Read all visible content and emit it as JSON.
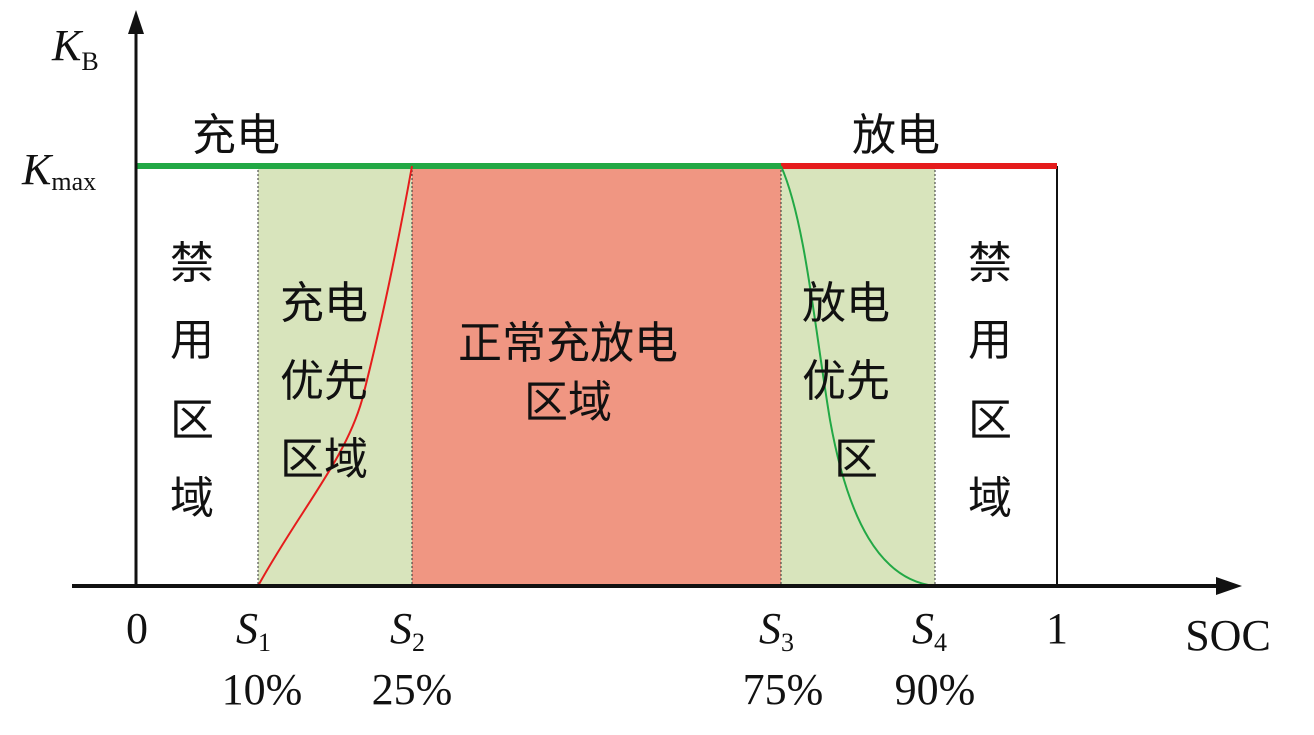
{
  "axes": {
    "y_label_main": "K",
    "y_label_sub": "B",
    "kmax_main": "K",
    "kmax_sub": "max",
    "x_label": "SOC",
    "origin": "0",
    "one": "1"
  },
  "top_labels": {
    "charge": "充电",
    "discharge": "放电"
  },
  "regions": {
    "forbidden_left": [
      "禁",
      "用",
      "区",
      "域"
    ],
    "charge_priority": [
      "充电",
      "优先",
      "区域"
    ],
    "normal": [
      "正常充放电",
      "区域"
    ],
    "discharge_priority": [
      "放电",
      "优先",
      "区"
    ],
    "forbidden_right": [
      "禁",
      "用",
      "区",
      "域"
    ]
  },
  "thresholds": [
    {
      "symbol": "S",
      "sub": "1",
      "percent": "10%"
    },
    {
      "symbol": "S",
      "sub": "2",
      "percent": "25%"
    },
    {
      "symbol": "S",
      "sub": "3",
      "percent": "75%"
    },
    {
      "symbol": "S",
      "sub": "4",
      "percent": "90%"
    }
  ],
  "colors": {
    "priority_fill": "#d8e4bc",
    "normal_fill": "#f09682",
    "charge_line": "#22a845",
    "discharge_line": "#e51c1c",
    "axis": "#111111"
  }
}
